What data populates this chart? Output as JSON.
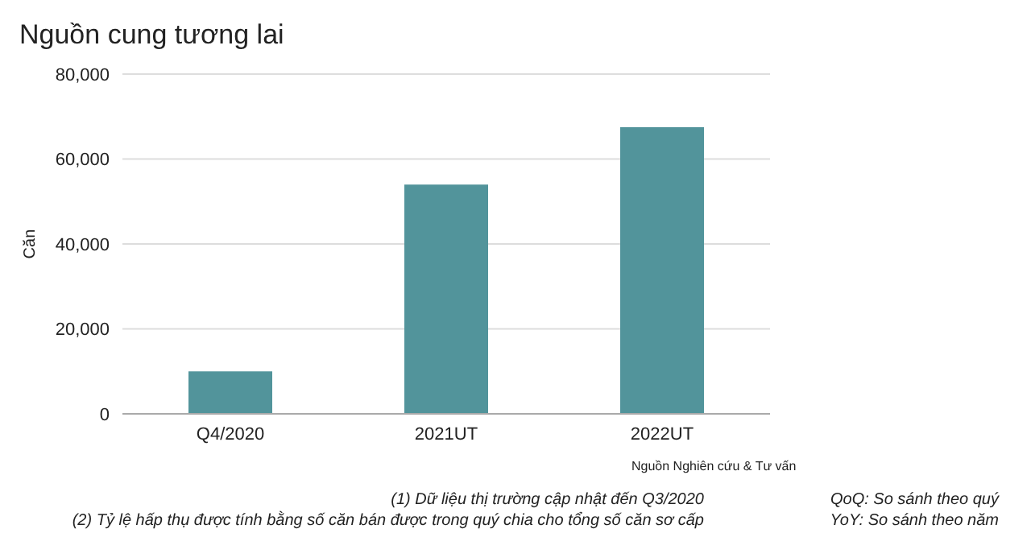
{
  "chart_data": {
    "type": "bar",
    "title": "Nguồn cung tương lai",
    "ylabel": "Căn",
    "categories": [
      "Q4/2020",
      "2021UT",
      "2022UT"
    ],
    "values": [
      10000,
      54000,
      67500
    ],
    "color": "#52949b",
    "ylim": [
      0,
      80000
    ],
    "yticks": [
      {
        "value": 0,
        "label": "0"
      },
      {
        "value": 20000,
        "label": "20,000"
      },
      {
        "value": 40000,
        "label": "40,000"
      },
      {
        "value": 60000,
        "label": "60,000"
      },
      {
        "value": 80000,
        "label": "80,000"
      }
    ],
    "grid": "y",
    "annotations": [
      "Nguồn Nghiên cứu & Tư vấn",
      "(1) Dữ liệu thị trường cập nhật đến Q3/2020",
      "(2) Tỷ lệ hấp thụ được tính bằng số căn bán được trong quý chia cho tổng số căn sơ cấp",
      "QoQ: So sánh theo quý",
      "YoY: So sánh theo năm"
    ]
  }
}
